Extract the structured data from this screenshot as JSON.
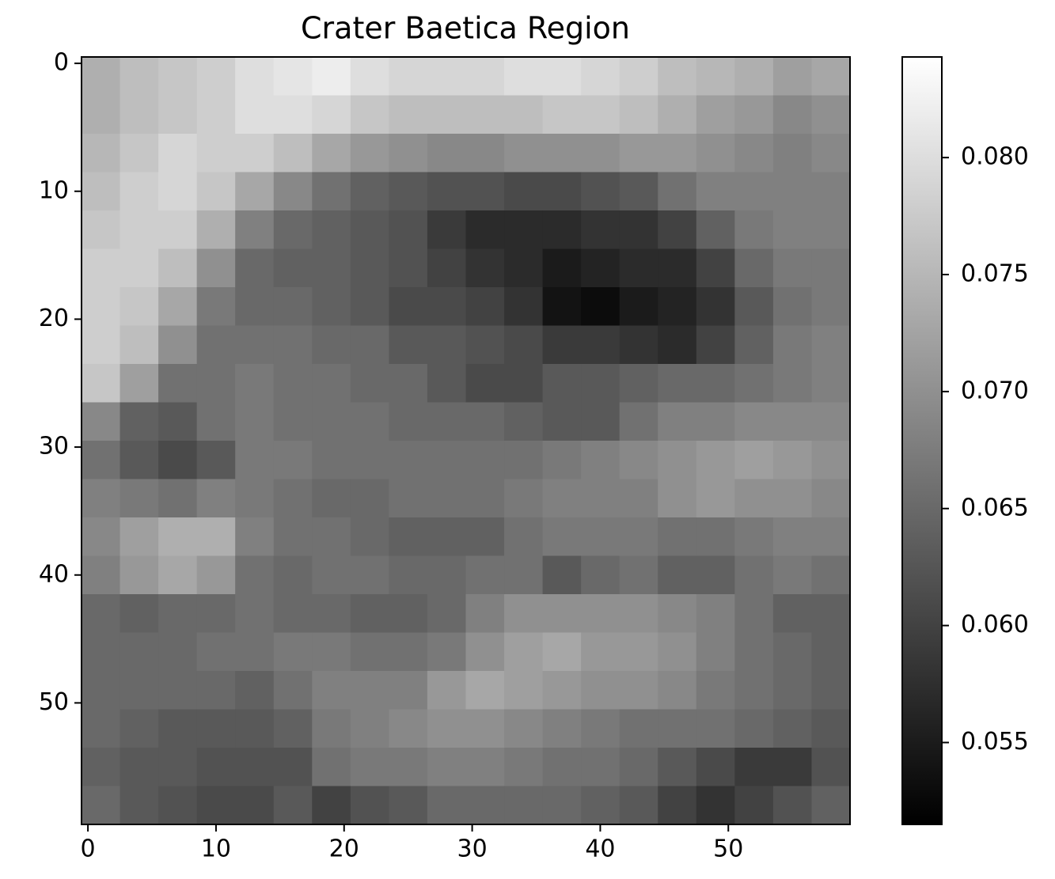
{
  "chart_data": {
    "type": "heatmap",
    "title": "Crater Baetica Region",
    "colormap": "gray",
    "xlim": [
      -0.5,
      59.5
    ],
    "ylim": [
      59.5,
      -0.5
    ],
    "xticks": [
      0,
      10,
      20,
      30,
      40,
      50
    ],
    "yticks": [
      0,
      10,
      20,
      30,
      40,
      50
    ],
    "clim": [
      0.0515,
      0.0843
    ],
    "cticks": [
      {
        "value": 0.055,
        "label": "0.055"
      },
      {
        "value": 0.06,
        "label": "0.060"
      },
      {
        "value": 0.065,
        "label": "0.065"
      },
      {
        "value": 0.07,
        "label": "0.070"
      },
      {
        "value": 0.075,
        "label": "0.075"
      },
      {
        "value": 0.08,
        "label": "0.080"
      }
    ],
    "z": [
      [
        0.074,
        0.076,
        0.077,
        0.078,
        0.08,
        0.081,
        0.082,
        0.08,
        0.079,
        0.079,
        0.079,
        0.08,
        0.08,
        0.079,
        0.078,
        0.076,
        0.075,
        0.074,
        0.072,
        0.073
      ],
      [
        0.074,
        0.076,
        0.077,
        0.078,
        0.08,
        0.08,
        0.079,
        0.077,
        0.076,
        0.076,
        0.076,
        0.076,
        0.077,
        0.077,
        0.076,
        0.074,
        0.072,
        0.071,
        0.069,
        0.07
      ],
      [
        0.075,
        0.077,
        0.079,
        0.078,
        0.078,
        0.076,
        0.073,
        0.071,
        0.07,
        0.069,
        0.069,
        0.07,
        0.07,
        0.07,
        0.071,
        0.071,
        0.07,
        0.069,
        0.068,
        0.069
      ],
      [
        0.076,
        0.078,
        0.079,
        0.077,
        0.073,
        0.069,
        0.066,
        0.064,
        0.063,
        0.062,
        0.062,
        0.061,
        0.061,
        0.062,
        0.063,
        0.066,
        0.068,
        0.068,
        0.068,
        0.068
      ],
      [
        0.077,
        0.078,
        0.078,
        0.074,
        0.068,
        0.065,
        0.064,
        0.063,
        0.062,
        0.059,
        0.057,
        0.057,
        0.057,
        0.058,
        0.058,
        0.06,
        0.064,
        0.067,
        0.068,
        0.068
      ],
      [
        0.078,
        0.078,
        0.076,
        0.07,
        0.065,
        0.064,
        0.064,
        0.063,
        0.062,
        0.06,
        0.058,
        0.057,
        0.055,
        0.056,
        0.057,
        0.057,
        0.06,
        0.065,
        0.067,
        0.067
      ],
      [
        0.078,
        0.077,
        0.073,
        0.067,
        0.065,
        0.065,
        0.064,
        0.063,
        0.061,
        0.061,
        0.06,
        0.058,
        0.054,
        0.053,
        0.055,
        0.056,
        0.058,
        0.063,
        0.066,
        0.067
      ],
      [
        0.078,
        0.076,
        0.07,
        0.066,
        0.066,
        0.066,
        0.065,
        0.065,
        0.063,
        0.063,
        0.062,
        0.061,
        0.059,
        0.059,
        0.058,
        0.057,
        0.06,
        0.064,
        0.067,
        0.068
      ],
      [
        0.077,
        0.072,
        0.066,
        0.066,
        0.067,
        0.066,
        0.066,
        0.065,
        0.065,
        0.063,
        0.061,
        0.061,
        0.063,
        0.063,
        0.064,
        0.065,
        0.065,
        0.066,
        0.067,
        0.068
      ],
      [
        0.069,
        0.064,
        0.063,
        0.066,
        0.067,
        0.066,
        0.066,
        0.066,
        0.065,
        0.065,
        0.065,
        0.064,
        0.063,
        0.063,
        0.066,
        0.068,
        0.068,
        0.069,
        0.069,
        0.069
      ],
      [
        0.066,
        0.063,
        0.061,
        0.063,
        0.067,
        0.067,
        0.066,
        0.066,
        0.066,
        0.066,
        0.066,
        0.066,
        0.067,
        0.068,
        0.069,
        0.07,
        0.071,
        0.072,
        0.071,
        0.07
      ],
      [
        0.068,
        0.067,
        0.066,
        0.068,
        0.067,
        0.066,
        0.065,
        0.065,
        0.066,
        0.066,
        0.066,
        0.067,
        0.068,
        0.068,
        0.068,
        0.07,
        0.071,
        0.07,
        0.07,
        0.069
      ],
      [
        0.069,
        0.072,
        0.074,
        0.074,
        0.068,
        0.066,
        0.066,
        0.065,
        0.064,
        0.064,
        0.064,
        0.066,
        0.067,
        0.067,
        0.067,
        0.066,
        0.066,
        0.067,
        0.068,
        0.068
      ],
      [
        0.068,
        0.071,
        0.073,
        0.071,
        0.066,
        0.065,
        0.066,
        0.066,
        0.065,
        0.065,
        0.066,
        0.066,
        0.063,
        0.065,
        0.066,
        0.064,
        0.064,
        0.066,
        0.067,
        0.066
      ],
      [
        0.065,
        0.064,
        0.065,
        0.065,
        0.066,
        0.065,
        0.065,
        0.064,
        0.064,
        0.065,
        0.068,
        0.07,
        0.07,
        0.07,
        0.07,
        0.069,
        0.068,
        0.066,
        0.064,
        0.064
      ],
      [
        0.065,
        0.065,
        0.065,
        0.066,
        0.066,
        0.067,
        0.067,
        0.066,
        0.066,
        0.067,
        0.07,
        0.072,
        0.073,
        0.071,
        0.071,
        0.07,
        0.068,
        0.066,
        0.065,
        0.064
      ],
      [
        0.065,
        0.065,
        0.065,
        0.065,
        0.064,
        0.066,
        0.068,
        0.068,
        0.068,
        0.071,
        0.073,
        0.072,
        0.071,
        0.07,
        0.07,
        0.069,
        0.067,
        0.066,
        0.065,
        0.064
      ],
      [
        0.065,
        0.064,
        0.063,
        0.063,
        0.063,
        0.064,
        0.067,
        0.068,
        0.069,
        0.07,
        0.07,
        0.069,
        0.068,
        0.067,
        0.066,
        0.066,
        0.066,
        0.065,
        0.064,
        0.063
      ],
      [
        0.064,
        0.063,
        0.063,
        0.062,
        0.062,
        0.062,
        0.066,
        0.067,
        0.067,
        0.068,
        0.068,
        0.067,
        0.066,
        0.066,
        0.065,
        0.063,
        0.061,
        0.059,
        0.059,
        0.062
      ],
      [
        0.065,
        0.063,
        0.062,
        0.061,
        0.061,
        0.063,
        0.06,
        0.062,
        0.063,
        0.065,
        0.065,
        0.065,
        0.065,
        0.064,
        0.063,
        0.06,
        0.058,
        0.06,
        0.062,
        0.064
      ]
    ]
  }
}
